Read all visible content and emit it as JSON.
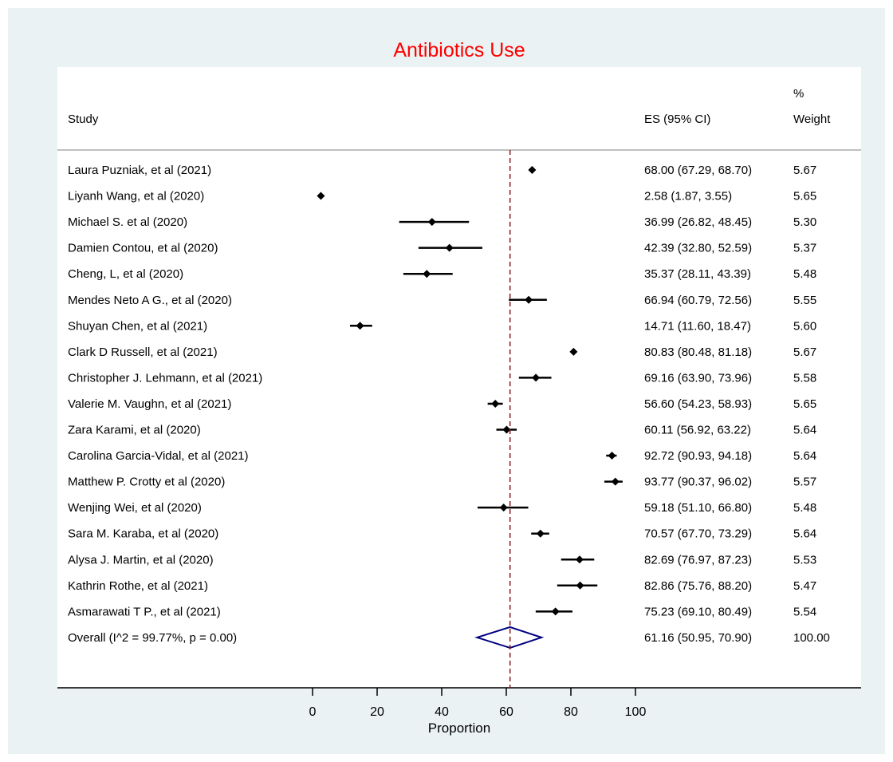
{
  "chart_data": {
    "type": "forest",
    "title": "Antibiotics Use",
    "title_color": "#ff0000",
    "headers": {
      "study": "Study",
      "es": "ES (95% CI)",
      "weight_line1": "%",
      "weight_line2": "Weight"
    },
    "xlabel": "Proportion",
    "xlim": [
      0,
      100
    ],
    "xticks": [
      0,
      20,
      40,
      60,
      80,
      100
    ],
    "reference_line": 61.16,
    "reference_line_color": "#8b1a1a",
    "marker_color": "#000000",
    "overall_color": "#000080",
    "studies": [
      {
        "label": "Laura Puzniak, et al (2021)",
        "es": 68.0,
        "lo": 67.29,
        "hi": 68.7,
        "es_text": "68.00 (67.29, 68.70)",
        "weight": "5.67"
      },
      {
        "label": "Liyanh Wang, et al (2020)",
        "es": 2.58,
        "lo": 1.87,
        "hi": 3.55,
        "es_text": "2.58 (1.87, 3.55)",
        "weight": "5.65"
      },
      {
        "label": "Michael S. et al (2020)",
        "es": 36.99,
        "lo": 26.82,
        "hi": 48.45,
        "es_text": "36.99 (26.82, 48.45)",
        "weight": "5.30"
      },
      {
        "label": "Damien Contou, et al (2020)",
        "es": 42.39,
        "lo": 32.8,
        "hi": 52.59,
        "es_text": "42.39 (32.80, 52.59)",
        "weight": "5.37"
      },
      {
        "label": "Cheng, L, et al (2020)",
        "es": 35.37,
        "lo": 28.11,
        "hi": 43.39,
        "es_text": "35.37 (28.11, 43.39)",
        "weight": "5.48"
      },
      {
        "label": "Mendes Neto A G., et al (2020)",
        "es": 66.94,
        "lo": 60.79,
        "hi": 72.56,
        "es_text": "66.94 (60.79, 72.56)",
        "weight": "5.55"
      },
      {
        "label": "Shuyan Chen, et al (2021)",
        "es": 14.71,
        "lo": 11.6,
        "hi": 18.47,
        "es_text": "14.71 (11.60, 18.47)",
        "weight": "5.60"
      },
      {
        "label": "Clark D Russell, et al (2021)",
        "es": 80.83,
        "lo": 80.48,
        "hi": 81.18,
        "es_text": "80.83 (80.48, 81.18)",
        "weight": "5.67"
      },
      {
        "label": "Christopher J. Lehmann, et al (2021)",
        "es": 69.16,
        "lo": 63.9,
        "hi": 73.96,
        "es_text": "69.16 (63.90, 73.96)",
        "weight": "5.58"
      },
      {
        "label": "Valerie M. Vaughn, et al (2021)",
        "es": 56.6,
        "lo": 54.23,
        "hi": 58.93,
        "es_text": "56.60 (54.23, 58.93)",
        "weight": "5.65"
      },
      {
        "label": "Zara Karami, et al (2020)",
        "es": 60.11,
        "lo": 56.92,
        "hi": 63.22,
        "es_text": "60.11 (56.92, 63.22)",
        "weight": "5.64"
      },
      {
        "label": "Carolina Garcia-Vidal, et al (2021)",
        "es": 92.72,
        "lo": 90.93,
        "hi": 94.18,
        "es_text": "92.72 (90.93, 94.18)",
        "weight": "5.64"
      },
      {
        "label": "Matthew P. Crotty et al (2020)",
        "es": 93.77,
        "lo": 90.37,
        "hi": 96.02,
        "es_text": "93.77 (90.37, 96.02)",
        "weight": "5.57"
      },
      {
        "label": "Wenjing Wei, et al (2020)",
        "es": 59.18,
        "lo": 51.1,
        "hi": 66.8,
        "es_text": "59.18 (51.10, 66.80)",
        "weight": "5.48"
      },
      {
        "label": "Sara M. Karaba, et al (2020)",
        "es": 70.57,
        "lo": 67.7,
        "hi": 73.29,
        "es_text": "70.57 (67.70, 73.29)",
        "weight": "5.64"
      },
      {
        "label": "Alysa J. Martin, et al (2020)",
        "es": 82.69,
        "lo": 76.97,
        "hi": 87.23,
        "es_text": "82.69 (76.97, 87.23)",
        "weight": "5.53"
      },
      {
        "label": "Kathrin Rothe, et al (2021)",
        "es": 82.86,
        "lo": 75.76,
        "hi": 88.2,
        "es_text": "82.86 (75.76, 88.20)",
        "weight": "5.47"
      },
      {
        "label": "Asmarawati T P., et al (2021)",
        "es": 75.23,
        "lo": 69.1,
        "hi": 80.49,
        "es_text": "75.23 (69.10, 80.49)",
        "weight": "5.54"
      }
    ],
    "overall": {
      "label": "Overall  (I^2 = 99.77%, p = 0.00)",
      "es": 61.16,
      "lo": 50.95,
      "hi": 70.9,
      "es_text": "61.16 (50.95, 70.90)",
      "weight": "100.00"
    }
  }
}
